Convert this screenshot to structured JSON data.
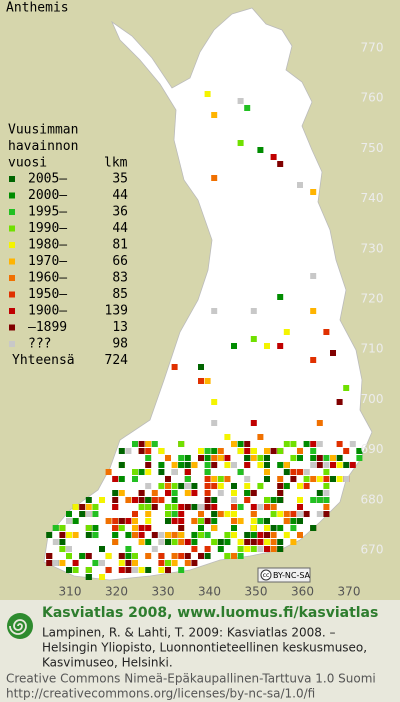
{
  "title": "Anthemis",
  "grid": {
    "north": [
      770,
      760,
      750,
      740,
      730,
      720,
      710,
      700,
      690,
      680,
      670
    ],
    "east": [
      310,
      320,
      330,
      340,
      350,
      360,
      370
    ]
  },
  "legend": {
    "heading": [
      "Vuusimman",
      "havainnon",
      "vuosi"
    ],
    "count_header": "lkm",
    "items": [
      {
        "label": "2005–",
        "count": 35,
        "color": "#006400"
      },
      {
        "label": "2000–",
        "count": 44,
        "color": "#008c00"
      },
      {
        "label": "1995–",
        "count": 36,
        "color": "#22c022"
      },
      {
        "label": "1990–",
        "count": 44,
        "color": "#70e000"
      },
      {
        "label": "1980–",
        "count": 81,
        "color": "#f4f400"
      },
      {
        "label": "1970–",
        "count": 66,
        "color": "#ffb400"
      },
      {
        "label": "1960–",
        "count": 83,
        "color": "#f07000"
      },
      {
        "label": "1950–",
        "count": 85,
        "color": "#e03000"
      },
      {
        "label": "1900–",
        "count": 139,
        "color": "#c00000"
      },
      {
        "label": "–1899",
        "count": 13,
        "color": "#800000"
      },
      {
        "label": "???",
        "count": 98,
        "color": "#c8c8c8"
      }
    ],
    "total": {
      "label": "Yhteensä",
      "count": 724
    }
  },
  "badge": {
    "cc": "cc",
    "text": "BY-NC-SA"
  },
  "footer": {
    "site": "Kasviatlas 2008, www.luomus.fi/kasviatlas",
    "citation": [
      "Lampinen, R. & Lahti, T. 2009: Kasviatlas 2008. –",
      "Helsingin Yliopisto, Luonnontieteellinen keskusmuseo,",
      "Kasvimuseo, Helsinki."
    ],
    "license": [
      "Creative Commons Nimeä-Epäkaupallinen-Tarttuva 1.0 Suomi",
      "http://creativecommons.org/licenses/by-nc-sa/1.0/fi"
    ]
  }
}
